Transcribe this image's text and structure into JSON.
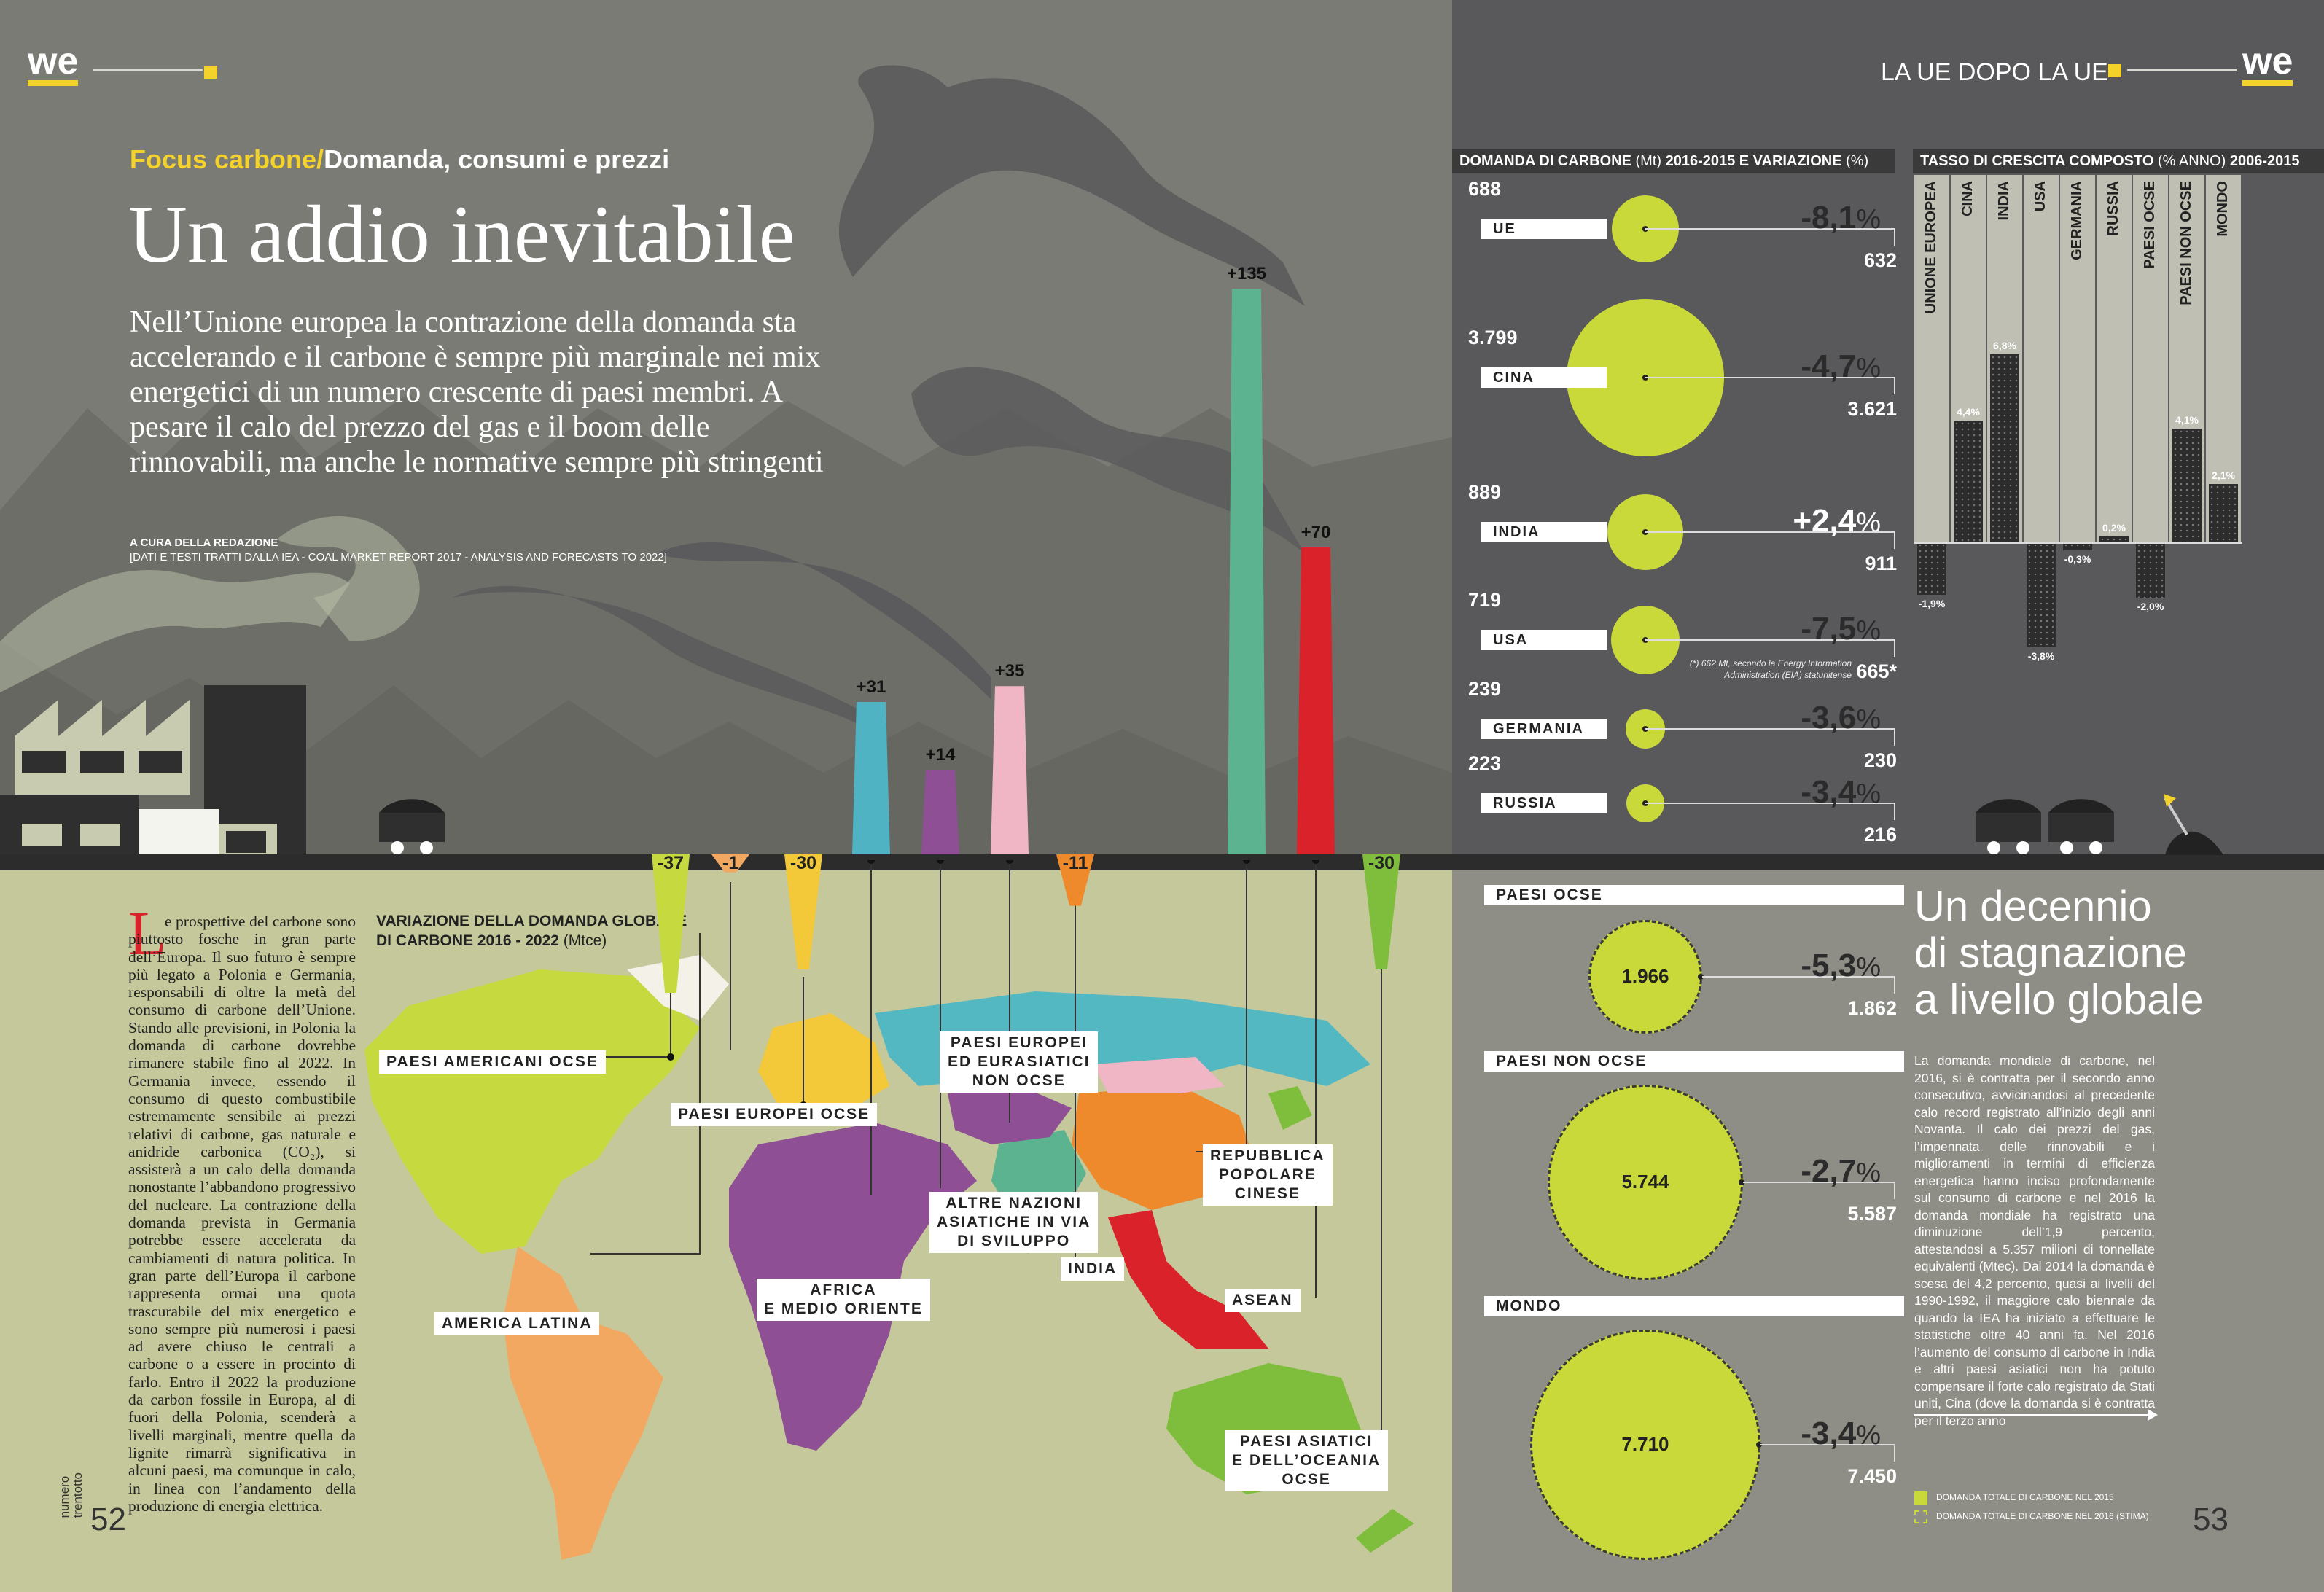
{
  "header": {
    "logo_left": "we",
    "section": "LA UE DOPO LA UE",
    "logo_right": "we"
  },
  "article": {
    "kicker_a": "Focus carbone/",
    "kicker_b": "Domanda, consumi e prezzi",
    "title": "Un addio inevitabile",
    "lead": "Nell’Unione europea la contrazione della domanda sta accelerando e il carbone è sempre più marginale nei mix energetici di un numero crescente di paesi membri. A pesare il calo del prezzo del gas e il boom delle rinnovabili, ma anche le normative sempre più stringenti",
    "credit": "A CURA DELLA REDAZIONE",
    "source": "[DATI E TESTI TRATTI DALLA IEA - COAL MARKET REPORT 2017 - ANALYSIS AND FORECASTS TO 2022]",
    "dropcap": "L",
    "body": "e prospettive del carbone sono piuttosto fosche in gran parte dell’Europa. Il suo futuro è sempre più legato a Polonia e Germania, responsabili di oltre la metà del consumo di carbone dell’Unione. Stando alle previsioni, in Polonia la domanda di carbone dovrebbe rimanere stabile fino al 2022. In Germania invece, essendo il consumo di questo combustibile estremamente sensibile ai prezzi relativi di carbone, gas naturale e anidride carbonica (CO₂), si assisterà a un calo della domanda nonostante l’abbandono progressivo del nucleare. La contrazione della domanda prevista in Germania potrebbe essere accelerata da cambiamenti di natura politica. In gran parte dell’Europa il carbone rappresenta ormai una quota trascurabile del mix energetico e sono sempre più numerosi i paesi ad avere chiuso le centrali a carbone o a essere in procinto di farlo. Entro il 2022 la produzione da carbon fossile in Europa, al di fuori della Polonia, scenderà a livelli marginali, mentre quella da lignite rimarrà significativa in alcuni paesi, ma comunque in calo, in linea con l’andamento della produzione di energia elettrica.",
    "page_left": "52",
    "page_right": "53",
    "issue_label": "numero\ntrentotto"
  },
  "world_chart": {
    "title_a": "VARIAZIONE DELLA DOMANDA GLOBALE",
    "title_b": "DI CARBONE 2016 - 2022 ",
    "title_unit": "(Mtce)",
    "chimneys": [
      {
        "label": "+31",
        "value": 31,
        "color": "#4fb3c4"
      },
      {
        "label": "+14",
        "value": 14,
        "color": "#8e4f95"
      },
      {
        "label": "+35",
        "value": 35,
        "color": "#f0b6c6"
      },
      {
        "label": "+135",
        "value": 135,
        "color": "#5bb48f"
      },
      {
        "label": "+70",
        "value": 70,
        "color": "#d9222a"
      }
    ],
    "drops": [
      {
        "label": "-37",
        "value": -37,
        "color": "#c6d93e"
      },
      {
        "label": "-1",
        "value": -1,
        "color": "#f2a860"
      },
      {
        "label": "-30",
        "value": -30,
        "color": "#f3c93a"
      },
      {
        "label": "-11",
        "value": -11,
        "color": "#ee8a2c"
      },
      {
        "label": "-30",
        "value": -30,
        "color": "#7fbd3c"
      }
    ],
    "regions": {
      "americani_ocse": "PAESI AMERICANI OCSE",
      "europei_ocse": "PAESI EUROPEI OCSE",
      "europei_eurasiatici": "PAESI EUROPEI\nED EURASIATICI\nNON OCSE",
      "cinese": "REPUBBLICA\nPOPOLARE\nCINESE",
      "altre_asiatiche": "ALTRE NAZIONI\nASIATICHE IN VIA\nDI SVILUPPO",
      "india": "INDIA",
      "africa": "AFRICA\nE MEDIO ORIENTE",
      "asean": "ASEAN",
      "america_latina": "AMERICA LATINA",
      "asiatici_oceania": "PAESI ASIATICI\nE DELL’OCEANIA\nOCSE"
    }
  },
  "demand_chart": {
    "title_a": "DOMANDA DI CARBONE ",
    "title_b": "(Mt)",
    "title_c": " 2016-2015 E VARIAZIONE ",
    "title_d": "(%)",
    "rows": [
      {
        "name": "UE",
        "prev": "688",
        "change": "-8,1",
        "curr": "632"
      },
      {
        "name": "CINA",
        "prev": "3.799",
        "change": "-4,7",
        "curr": "3.621"
      },
      {
        "name": "INDIA",
        "prev": "889",
        "change": "+2,4",
        "curr": "911"
      },
      {
        "name": "USA",
        "prev": "719",
        "change": "-7,5",
        "curr": "665*"
      },
      {
        "name": "GERMANIA",
        "prev": "239",
        "change": "-3,6",
        "curr": "230"
      },
      {
        "name": "RUSSIA",
        "prev": "223",
        "change": "-3,4",
        "curr": "216"
      }
    ],
    "pct_sign": "%",
    "footnote": "(*) 662 Mt, secondo la Energy Information Administration (EIA) statunitense"
  },
  "growth_chart": {
    "title_a": "TASSO DI CRESCITA COMPOSTO ",
    "title_b": "(% ANNO)",
    "title_c": " 2006-2015",
    "bars": [
      {
        "name": "UNIONE EUROPEA",
        "value": -1.9,
        "label": "-1,9%"
      },
      {
        "name": "CINA",
        "value": 4.4,
        "label": "4,4%"
      },
      {
        "name": "INDIA",
        "value": 6.8,
        "label": "6,8%"
      },
      {
        "name": "USA",
        "value": -3.8,
        "label": "-3,8%"
      },
      {
        "name": "GERMANIA",
        "value": -0.3,
        "label": "-0,3%"
      },
      {
        "name": "RUSSIA",
        "value": 0.2,
        "label": "0,2%"
      },
      {
        "name": "PAESI OCSE",
        "value": -2.0,
        "label": "-2,0%"
      },
      {
        "name": "PAESI NON OCSE",
        "value": 4.1,
        "label": "4,1%"
      },
      {
        "name": "MONDO",
        "value": 2.1,
        "label": "2,1%"
      }
    ]
  },
  "global": {
    "title": "Un decennio\ndi stagnazione\na livello globale",
    "text": "La domanda mondiale di carbone, nel 2016, si è contratta per il secondo anno consecutivo, avvicinandosi al precedente calo record registrato all’inizio degli anni Novanta. Il calo dei prezzi del gas, l’impennata delle rinnovabili e i miglioramenti in termini di efficienza energetica hanno inciso profondamente sul consumo di carbone e nel 2016 la domanda mondiale ha registrato una diminuzione dell’1,9 percento, attestandosi a 5.357 milioni di tonnellate equivalenti (Mtec). Dal 2014 la domanda è scesa del 4,2 percento, quasi ai livelli del 1990-1992, il maggiore calo biennale da quando la IEA ha iniziato a effettuare le statistiche oltre 40 anni fa. Nel 2016 l’aumento del consumo di carbone in India e altri paesi asiatici non ha potuto compensare il forte calo registrato da Stati uniti, Cina (dove la domanda si è contratta per il terzo anno",
    "groups": [
      {
        "name": "PAESI OCSE",
        "v2015": "1.966",
        "change": "-5,3",
        "v2016": "1.862"
      },
      {
        "name": "PAESI NON OCSE",
        "v2015": "5.744",
        "change": "-2,7",
        "v2016": "5.587"
      },
      {
        "name": "MONDO",
        "v2015": "7.710",
        "change": "-3,4",
        "v2016": "7.450"
      }
    ],
    "legend_a": "DOMANDA TOTALE DI CARBONE NEL 2015",
    "legend_b": "DOMANDA TOTALE DI CARBONE NEL 2016 (STIMA)"
  },
  "colors": {
    "accent": "#f3d22b",
    "lime": "#c9d93a",
    "left_bg": "#7b7b76",
    "right_bg": "#59585b",
    "map_bg": "#c4c89a",
    "right_bottom_bg": "#8e8e86"
  }
}
